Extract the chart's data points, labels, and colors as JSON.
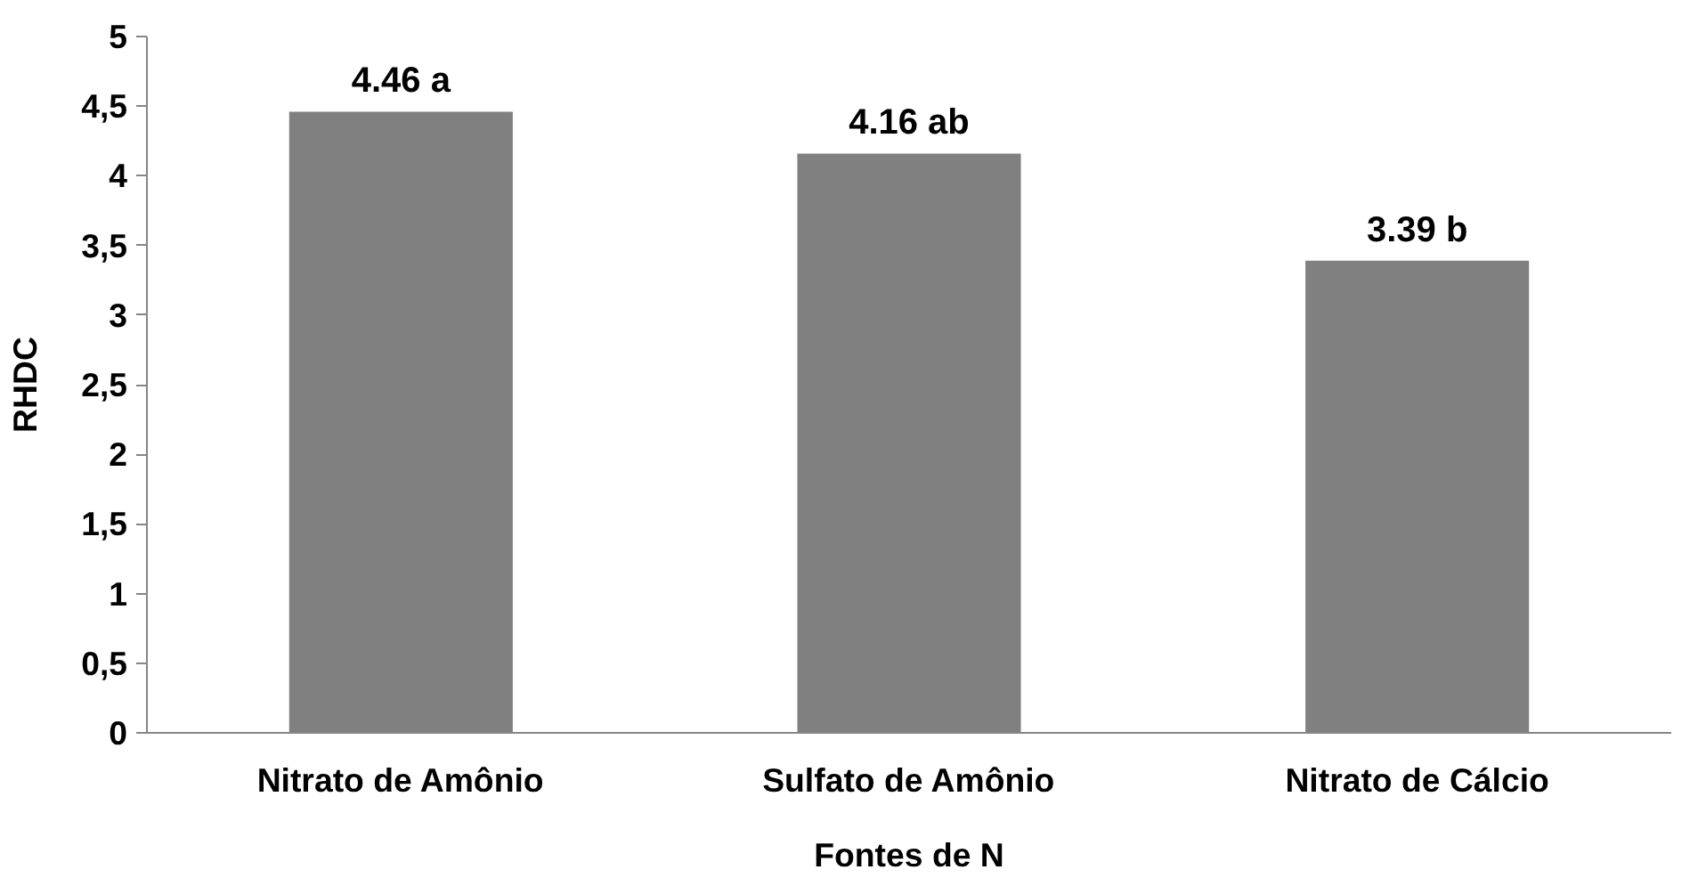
{
  "chart_data": {
    "type": "bar",
    "xlabel": "Fontes de N",
    "ylabel": "RHDC",
    "categories": [
      "Nitrato de Amônio",
      "Sulfato de Amônio",
      "Nitrato de Cálcio"
    ],
    "values": [
      4.46,
      4.16,
      3.39
    ],
    "color": "#808080",
    "value_labels": [
      "4.46 a",
      "4.16 ab",
      "3.39 b"
    ],
    "ylim": [
      0,
      5
    ],
    "yticks": [
      0,
      {
        "value": 0.5,
        "label": "0,5"
      },
      1,
      {
        "value": 1.5,
        "label": "1,5"
      },
      2,
      {
        "value": 2.5,
        "label": "2,5"
      },
      3,
      {
        "value": 3.5,
        "label": "3,5"
      },
      4,
      {
        "value": 4.5,
        "label": "4,5"
      },
      5
    ],
    "grid": false
  }
}
